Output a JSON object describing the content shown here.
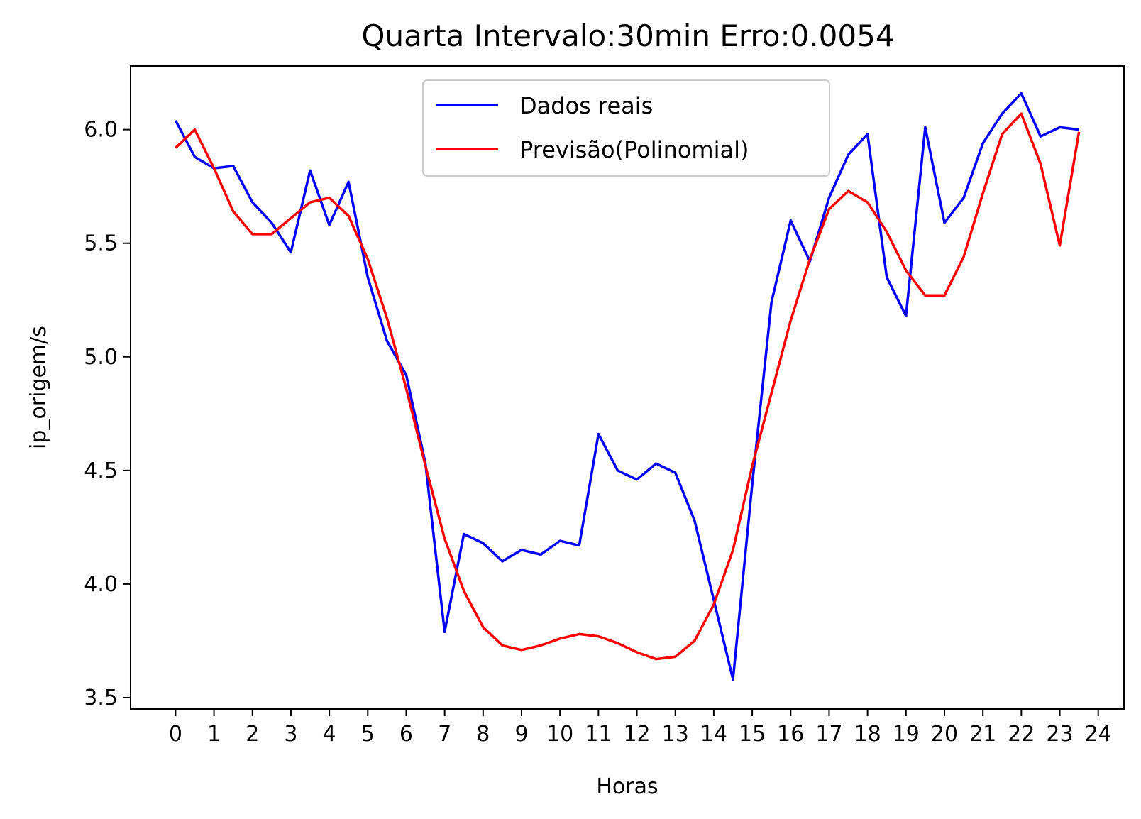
{
  "chart_data": {
    "type": "line",
    "title": "Quarta Intervalo:30min Erro:0.0054",
    "xlabel": "Horas",
    "ylabel": "ip_origem/s",
    "xlim": [
      -1.17,
      24.67
    ],
    "ylim": [
      3.45,
      6.28
    ],
    "xticks": [
      "0",
      "1",
      "2",
      "3",
      "4",
      "5",
      "6",
      "7",
      "8",
      "9",
      "10",
      "11",
      "12",
      "13",
      "14",
      "15",
      "16",
      "17",
      "18",
      "19",
      "20",
      "21",
      "22",
      "23",
      "24"
    ],
    "yticks": [
      "3.5",
      "4.0",
      "4.5",
      "5.0",
      "5.5",
      "6.0"
    ],
    "grid": false,
    "legend_position": "top-center",
    "x": [
      0,
      0.5,
      1,
      1.5,
      2,
      2.5,
      3,
      3.5,
      4,
      4.5,
      5,
      5.5,
      6,
      6.5,
      7,
      7.5,
      8,
      8.5,
      9,
      9.5,
      10,
      10.5,
      11,
      11.5,
      12,
      12.5,
      13,
      13.5,
      14,
      14.5,
      15,
      15.5,
      16,
      16.5,
      17,
      17.5,
      18,
      18.5,
      19,
      19.5,
      20,
      20.5,
      21,
      21.5,
      22,
      22.5,
      23,
      23.5
    ],
    "series": [
      {
        "name": "Dados reais",
        "color": "#0000ff",
        "values": [
          6.04,
          5.88,
          5.83,
          5.84,
          5.68,
          5.59,
          5.46,
          5.82,
          5.58,
          5.77,
          5.35,
          5.07,
          4.92,
          4.53,
          3.79,
          4.22,
          4.18,
          4.1,
          4.15,
          4.13,
          4.19,
          4.17,
          4.66,
          4.5,
          4.46,
          4.53,
          4.49,
          4.28,
          3.93,
          3.58,
          4.44,
          5.24,
          5.6,
          5.42,
          5.7,
          5.89,
          5.98,
          5.35,
          5.18,
          6.01,
          5.59,
          5.7,
          5.94,
          6.07,
          6.16,
          5.97,
          6.01,
          6.0
        ]
      },
      {
        "name": "Previsão(Polinomial)",
        "color": "#ff0000",
        "values": [
          5.92,
          6.0,
          5.83,
          5.64,
          5.54,
          5.54,
          5.61,
          5.68,
          5.7,
          5.62,
          5.43,
          5.17,
          4.86,
          4.52,
          4.2,
          3.97,
          3.81,
          3.73,
          3.71,
          3.73,
          3.76,
          3.78,
          3.77,
          3.74,
          3.7,
          3.67,
          3.68,
          3.75,
          3.91,
          4.15,
          4.52,
          4.84,
          5.16,
          5.43,
          5.65,
          5.73,
          5.68,
          5.55,
          5.38,
          5.27,
          5.27,
          5.44,
          5.72,
          5.98,
          6.07,
          5.85,
          5.49,
          5.99
        ]
      }
    ]
  }
}
